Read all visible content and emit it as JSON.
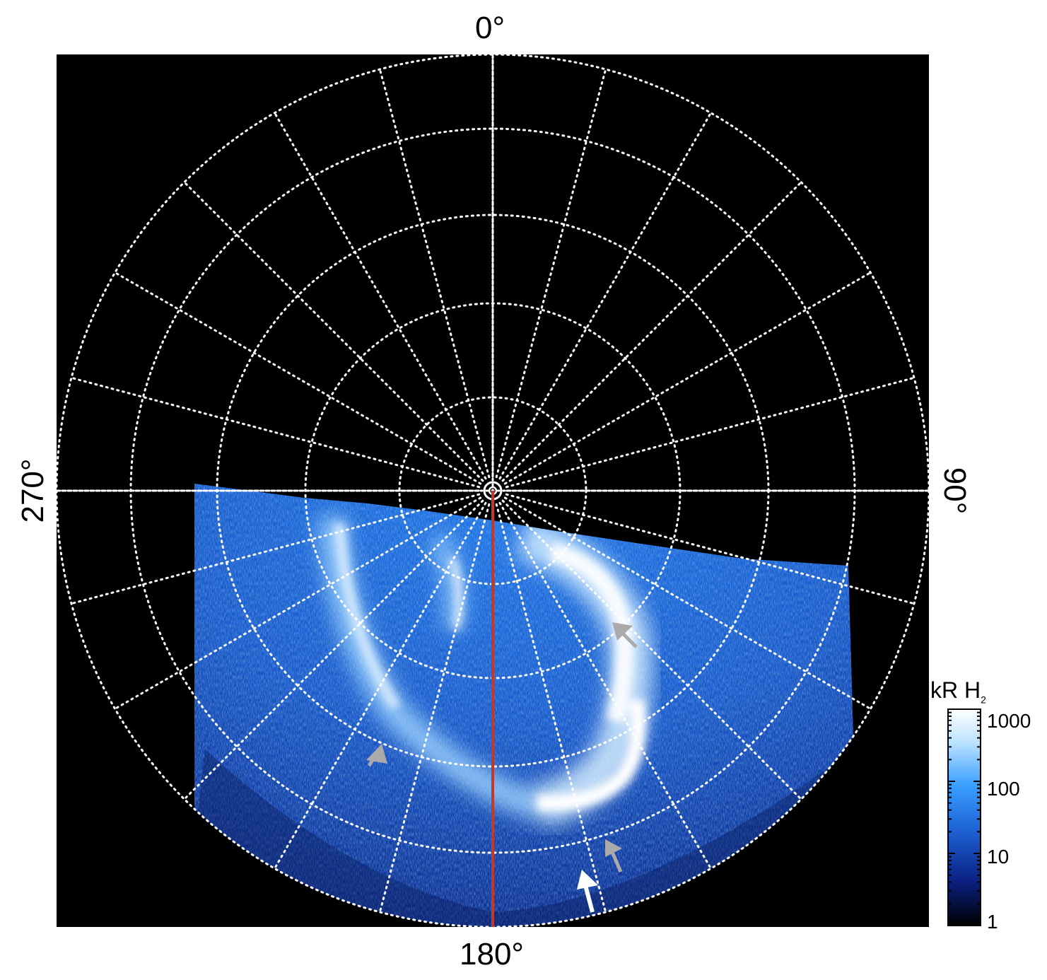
{
  "projection": {
    "azimuth_labels": {
      "top": "0°",
      "bottom": "180°",
      "left": "270°",
      "right": "90°"
    },
    "grid": "dotted-white",
    "background": "#000000",
    "meridian_line_color": "#c0392b"
  },
  "colorbar": {
    "title_main": "kR H",
    "title_sub": "2",
    "ticks": [
      "1000",
      "100",
      "10",
      "1"
    ],
    "scale": "log",
    "colors": [
      "#000000",
      "#0a1f80",
      "#1e64d8",
      "#3aa0ff",
      "#bde3ff",
      "#ffffff"
    ]
  },
  "annotations": {
    "arrows": [
      {
        "color": "#aaaaaa",
        "label": ""
      },
      {
        "color": "#aaaaaa",
        "label": ""
      },
      {
        "color": "#aaaaaa",
        "label": ""
      },
      {
        "color": "#ffffff",
        "label": ""
      }
    ]
  }
}
